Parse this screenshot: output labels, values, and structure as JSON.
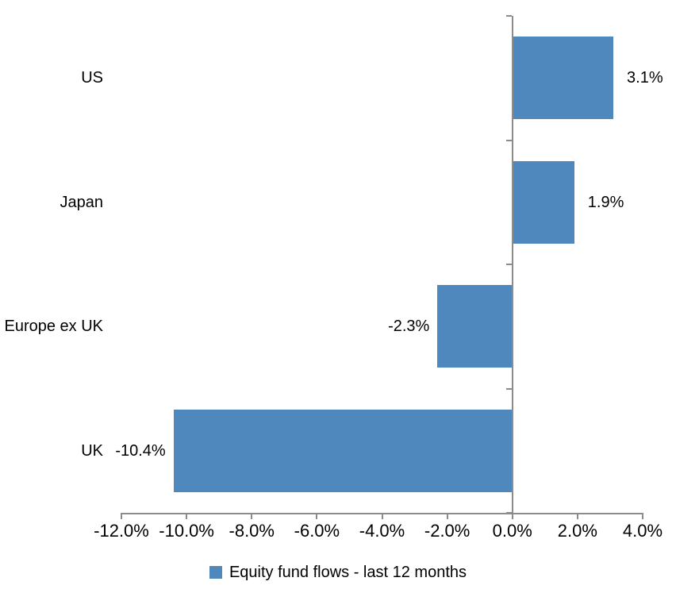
{
  "chart_data": {
    "type": "bar",
    "orientation": "horizontal",
    "title": "",
    "xlabel": "",
    "ylabel": "",
    "categories": [
      "US",
      "Japan",
      "Europe ex UK",
      "UK"
    ],
    "series": [
      {
        "name": "Equity fund flows - last 12 months",
        "values": [
          3.1,
          1.9,
          -2.3,
          -10.4
        ],
        "value_labels": [
          "3.1%",
          "1.9%",
          "-2.3%",
          "-10.4%"
        ]
      }
    ],
    "xlim": [
      -12,
      4
    ],
    "x_ticks": {
      "values": [
        -12,
        -10,
        -8,
        -6,
        -4,
        -2,
        0,
        2,
        4
      ],
      "labels": [
        "-12.0%",
        "-10.0%",
        "-8.0%",
        "-6.0%",
        "-4.0%",
        "-2.0%",
        "0.0%",
        "2.0%",
        "4.0%"
      ]
    },
    "grid": false,
    "legend_position": "bottom",
    "colors": {
      "bar": "#4E88BD",
      "axis": "#8C8C8C",
      "text": "#000000",
      "background": "#FFFFFF"
    }
  }
}
